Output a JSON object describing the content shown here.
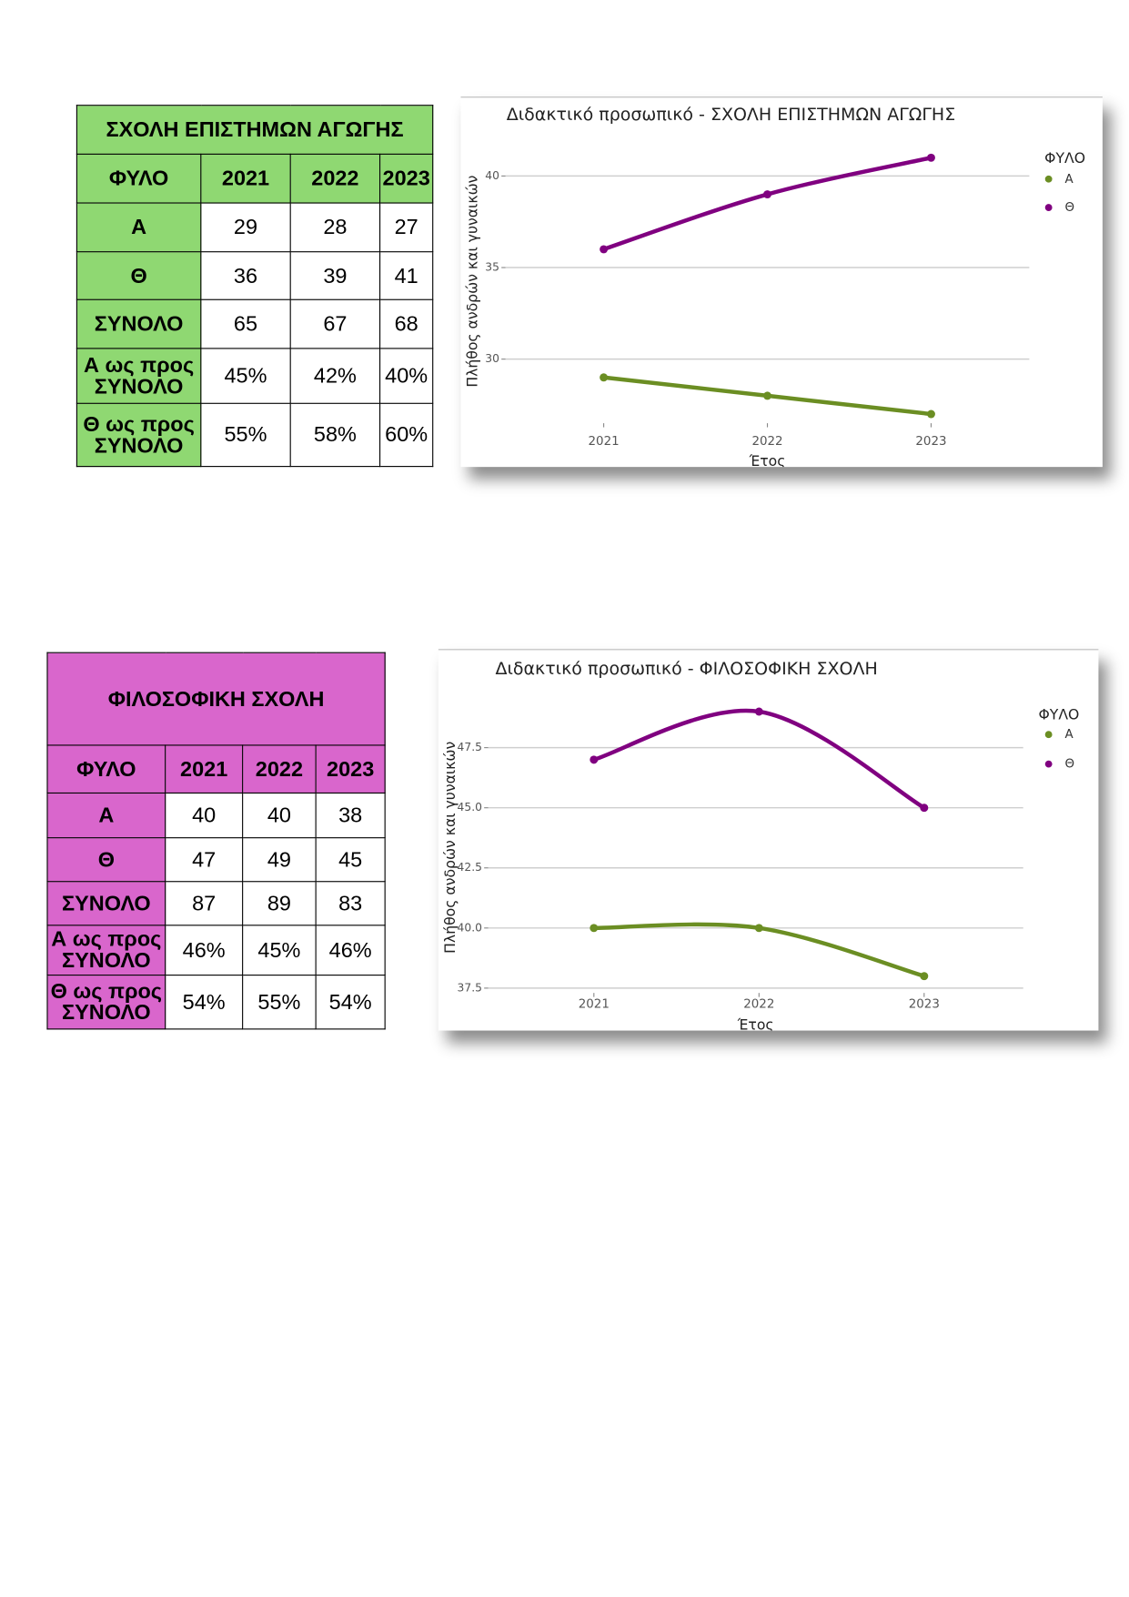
{
  "tables": [
    {
      "title": "ΣΧΟΛΗ ΕΠΙΣΤΗΜΩΝ ΑΓΩΓΗΣ",
      "header": [
        "ΦΥΛΟ",
        "2021",
        "2022",
        "2023"
      ],
      "rows": [
        [
          "Α",
          "29",
          "28",
          "27"
        ],
        [
          "Θ",
          "36",
          "39",
          "41"
        ],
        [
          "ΣΥΝΟΛΟ",
          "65",
          "67",
          "68"
        ],
        [
          "Α ως προς ΣΥΝΟΛΟ",
          "45%",
          "42%",
          "40%"
        ],
        [
          "Θ ως προς ΣΥΝΟΛΟ",
          "55%",
          "58%",
          "60%"
        ]
      ]
    },
    {
      "title": "ΦΙΛΟΣΟΦΙΚΗ ΣΧΟΛΗ",
      "header": [
        "ΦΥΛΟ",
        "2021",
        "2022",
        "2023"
      ],
      "rows": [
        [
          "Α",
          "40",
          "40",
          "38"
        ],
        [
          "Θ",
          "47",
          "49",
          "45"
        ],
        [
          "ΣΥΝΟΛΟ",
          "87",
          "89",
          "83"
        ],
        [
          "Α ως προς ΣΥΝΟΛΟ",
          "46%",
          "45%",
          "46%"
        ],
        [
          "Θ ως προς ΣΥΝΟΛΟ",
          "54%",
          "55%",
          "54%"
        ]
      ]
    }
  ],
  "chart_data": [
    {
      "type": "line",
      "title": "Διδακτικό προσωπικό - ΣΧΟΛΗ ΕΠΙΣΤΗΜΩΝ ΑΓΩΓΗΣ",
      "x_label": "Έτος",
      "y_label": "Πλήθος ανδρών και γυναικών",
      "legend_title": "ΦΥΛΟ",
      "x": [
        2021,
        2022,
        2023
      ],
      "xlim": [
        2020.4,
        2023.6
      ],
      "xticks": [
        2021,
        2022,
        2023
      ],
      "ylim": [
        26.5,
        42
      ],
      "yticks": [
        30,
        35,
        40
      ],
      "grid": true,
      "series": [
        {
          "name": "Α",
          "color": "#6b8e23",
          "values": [
            29,
            28,
            27
          ]
        },
        {
          "name": "Θ",
          "color": "#800080",
          "values": [
            36,
            39,
            41
          ]
        }
      ]
    },
    {
      "type": "line",
      "title": "Διδακτικό προσωπικό - ΦΙΛΟΣΟΦΙΚΗ ΣΧΟΛΗ",
      "x_label": "Έτος",
      "y_label": "Πλήθος ανδρών και γυναικών",
      "legend_title": "ΦΥΛΟ",
      "x": [
        2021,
        2022,
        2023
      ],
      "xlim": [
        2020.36,
        2023.6
      ],
      "xticks": [
        2021,
        2022,
        2023
      ],
      "ylim": [
        37.3,
        49.4
      ],
      "yticks": [
        37.5,
        {
          "value": 40,
          "label": "40.0"
        },
        42.5,
        {
          "value": 45,
          "label": "45.0"
        },
        47.5
      ],
      "grid": true,
      "series": [
        {
          "name": "Α",
          "color": "#6b8e23",
          "values": [
            40,
            40,
            38
          ]
        },
        {
          "name": "Θ",
          "color": "#800080",
          "values": [
            47,
            49,
            45
          ]
        }
      ]
    }
  ]
}
